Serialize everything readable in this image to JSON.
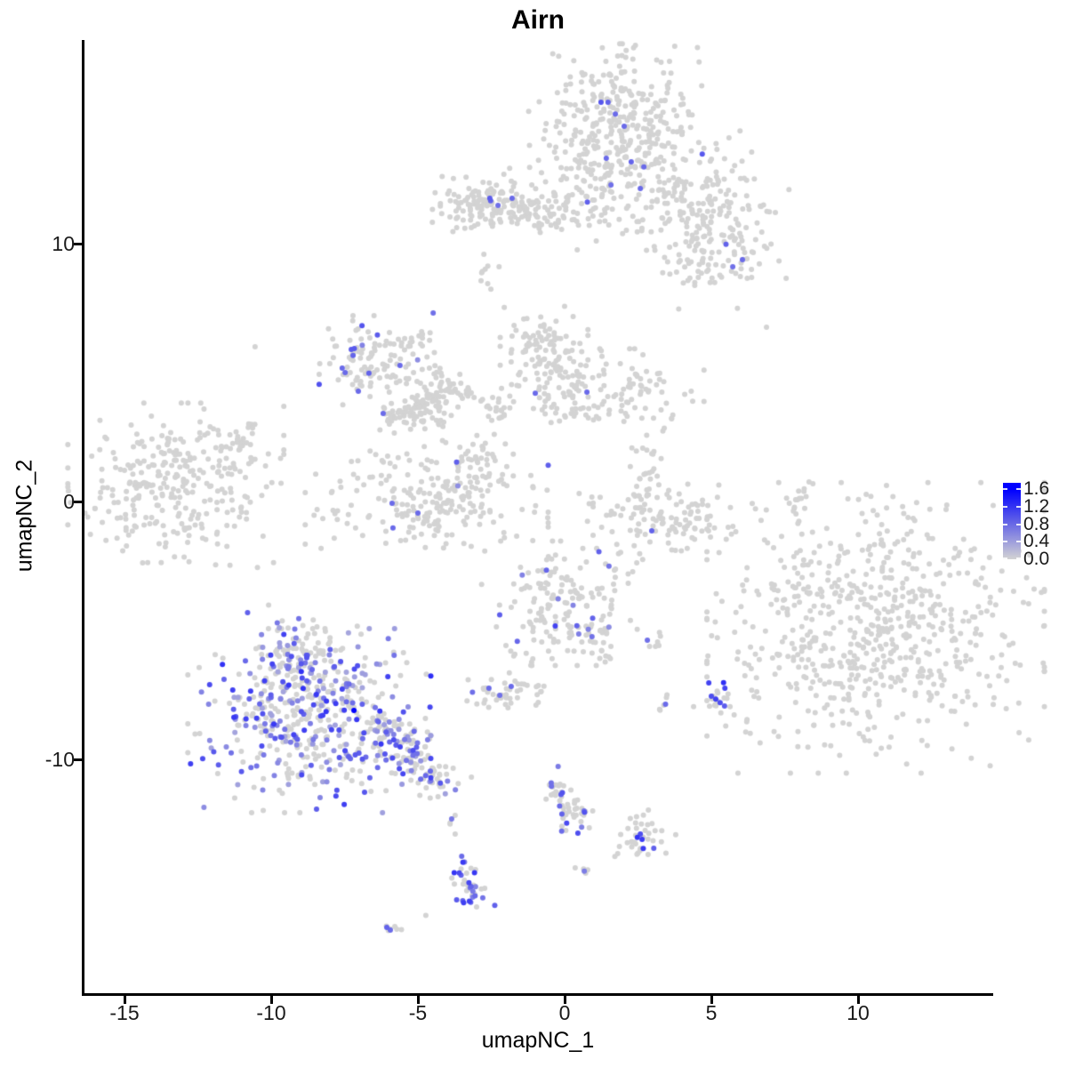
{
  "title": "Airn",
  "axes": {
    "x": {
      "label": "umapNC_1",
      "ticks": [
        "-15",
        "-10",
        "-5",
        "0",
        "5",
        "10"
      ],
      "tick_values": [
        -15,
        -10,
        -5,
        0,
        5,
        10
      ]
    },
    "y": {
      "label": "umapNC_2",
      "ticks": [
        "10",
        "0",
        "-10"
      ],
      "tick_values": [
        10,
        0,
        -10
      ]
    }
  },
  "legend": {
    "tick_labels": [
      "1.6",
      "1.2",
      "0.8",
      "0.4",
      "0.0"
    ],
    "tick_values": [
      1.6,
      1.2,
      0.8,
      0.4,
      0.0
    ],
    "low_color": "#d3d3d3",
    "high_color": "#0000ff",
    "max_value": 1.75
  },
  "chart_data": {
    "type": "scatter",
    "title": "Airn",
    "xlabel": "umapNC_1",
    "ylabel": "umapNC_2",
    "xlim": [
      -16.4,
      14.5
    ],
    "ylim": [
      -19.0,
      17.9
    ],
    "x_ticks": [
      -15,
      -10,
      -5,
      0,
      5,
      10
    ],
    "y_ticks": [
      10,
      0,
      -10
    ],
    "grid": false,
    "legend_position": "right",
    "colorbar": {
      "label_values": [
        1.6,
        1.2,
        0.8,
        0.4,
        0.0
      ],
      "low": "#d3d3d3",
      "high": "#0000ff",
      "value_range": [
        0,
        1.75
      ]
    },
    "point_radius_px": 3,
    "clusters_format": [
      "n",
      "cx",
      "cy",
      "sx",
      "sy",
      "expr_frac",
      "v_lo",
      "v_hi"
    ],
    "clusters": [
      [
        380,
        1.88,
        14.3,
        1.35,
        1.5,
        0.006,
        0.5,
        1.0
      ],
      [
        90,
        2.3,
        11.7,
        1.9,
        0.85,
        0.012,
        0.5,
        0.9
      ],
      [
        110,
        5.0,
        11.5,
        1.15,
        1.25,
        0.005,
        0.5,
        0.8
      ],
      [
        95,
        5.25,
        9.65,
        1.0,
        0.95,
        0.01,
        0.5,
        1.0
      ],
      [
        130,
        -2.35,
        11.6,
        1.05,
        0.5,
        0.01,
        0.5,
        1.0
      ],
      [
        55,
        -0.7,
        11.1,
        0.85,
        0.35,
        0,
        0,
        0
      ],
      [
        10,
        -3.9,
        11.0,
        0.45,
        0.35,
        0,
        0,
        0
      ],
      [
        9,
        -2.65,
        8.7,
        0.2,
        0.4,
        0,
        0,
        0
      ],
      [
        68,
        -7.1,
        5.45,
        0.55,
        0.8,
        0.03,
        0.5,
        1.0
      ],
      [
        55,
        -5.7,
        4.85,
        1.15,
        0.6,
        0.02,
        0.5,
        0.9
      ],
      [
        70,
        -4.9,
        3.6,
        0.55,
        0.5,
        0,
        0,
        0
      ],
      [
        110,
        -0.7,
        5.6,
        0.65,
        0.9,
        0,
        0,
        0
      ],
      [
        140,
        1.3,
        4.2,
        1.5,
        0.75,
        0,
        0,
        0
      ],
      [
        300,
        -13.25,
        0.6,
        1.6,
        1.4,
        0,
        0,
        0
      ],
      [
        185,
        -4.7,
        -0.2,
        1.8,
        0.75,
        0.005,
        0.5,
        0.9
      ],
      [
        55,
        -2.9,
        1.3,
        0.5,
        0.65,
        0,
        0,
        0
      ],
      [
        25,
        -5.6,
        1.7,
        1.0,
        0.6,
        0,
        0,
        0
      ],
      [
        115,
        3.6,
        -0.65,
        1.35,
        0.6,
        0,
        0,
        0
      ],
      [
        30,
        2.65,
        0.7,
        0.35,
        0.8,
        0,
        0,
        0
      ],
      [
        175,
        -0.1,
        -3.95,
        1.2,
        1.05,
        0.1,
        0.5,
        1.1
      ],
      [
        6,
        2.85,
        -5.4,
        0.25,
        0.2,
        0,
        0,
        0
      ],
      [
        680,
        10.6,
        -4.9,
        2.5,
        2.45,
        0,
        0,
        0
      ],
      [
        430,
        -8.7,
        -8.5,
        1.8,
        1.55,
        0.45,
        0.35,
        1.25
      ],
      [
        130,
        -8.85,
        -6.2,
        0.85,
        0.95,
        0.4,
        0.35,
        1.15
      ],
      [
        40,
        -2.2,
        -7.3,
        0.65,
        0.4,
        0.02,
        0.5,
        0.9
      ],
      [
        6,
        -1.0,
        -7.45,
        0.2,
        0.3,
        0,
        0,
        0
      ],
      [
        5,
        3.4,
        -7.85,
        0.2,
        0.25,
        0,
        0,
        0
      ],
      [
        18,
        5.2,
        -7.7,
        0.35,
        0.35,
        0.2,
        0.7,
        1.3
      ],
      [
        9,
        0.5,
        -12.1,
        0.35,
        0.2,
        0.12,
        0.6,
        0.8
      ],
      [
        4,
        0.65,
        -14.3,
        0.15,
        0.15,
        0,
        0,
        0
      ],
      [
        40,
        2.45,
        -13.0,
        0.7,
        0.45,
        0.1,
        0.7,
        1.2
      ],
      [
        6,
        -6.0,
        -16.5,
        0.2,
        0.15,
        0,
        0,
        0
      ],
      [
        3,
        -3.85,
        -12.6,
        0.12,
        0.3,
        0,
        0,
        0
      ]
    ],
    "filaments_format": [
      "n",
      "x1",
      "y1",
      "x2",
      "y2",
      "jitter",
      "expr_frac",
      "v_lo",
      "v_hi"
    ],
    "filaments": [
      [
        22,
        -11.9,
        1.9,
        -10.4,
        3.0,
        0.16,
        0,
        0,
        0
      ],
      [
        45,
        -6.3,
        2.95,
        -3.5,
        4.55,
        0.18,
        0.02,
        0.6,
        0.9
      ],
      [
        35,
        -4.2,
        4.8,
        -1.9,
        3.3,
        0.15,
        0,
        0,
        0
      ],
      [
        18,
        -5.9,
        5.9,
        -4.6,
        6.4,
        0.2,
        0,
        0,
        0
      ],
      [
        12,
        7.8,
        -0.5,
        8.2,
        0.7,
        0.1,
        0,
        0,
        0
      ],
      [
        22,
        0.75,
        -4.7,
        1.5,
        -6.1,
        0.3,
        0.18,
        0.6,
        1.0
      ],
      [
        130,
        -6.6,
        -8.6,
        -3.9,
        -11.0,
        0.42,
        0.42,
        0.35,
        1.1
      ],
      [
        45,
        -0.35,
        -10.7,
        0.2,
        -12.6,
        0.27,
        0.28,
        0.6,
        1.1
      ],
      [
        42,
        -3.55,
        -14.0,
        -2.95,
        -15.75,
        0.26,
        0.5,
        0.6,
        1.2
      ]
    ],
    "singles_format": [
      "x",
      "y",
      "value"
    ],
    "singles": [
      [
        6.88,
        6.76,
        0
      ],
      [
        -10.55,
        6.0,
        0
      ],
      [
        -4.73,
        -16.05,
        0
      ],
      [
        8.33,
        0.76,
        0
      ],
      [
        7.95,
        -0.85,
        0
      ],
      [
        -3.73,
        -12.9,
        0
      ],
      [
        -7.18,
        -8.1,
        1.6
      ],
      [
        -4.48,
        7.31,
        0.75
      ],
      [
        2.58,
        12.14,
        0.8
      ],
      [
        2.97,
        -1.14,
        0.85
      ],
      [
        -5.88,
        -0.07,
        0.8
      ],
      [
        -5.0,
        -0.45,
        0.8
      ],
      [
        -5.85,
        -1.03,
        0.8
      ],
      [
        -1.0,
        4.2,
        0.8
      ],
      [
        0.76,
        4.24,
        0.8
      ],
      [
        -2.55,
        11.76,
        0.9
      ],
      [
        -2.52,
        11.66,
        0.85
      ],
      [
        -1.79,
        11.76,
        0.8
      ],
      [
        -2.27,
        11.48,
        0.75
      ],
      [
        5.5,
        9.97,
        0.85
      ],
      [
        6.06,
        9.38,
        0.8
      ],
      [
        5.73,
        9.1,
        0.75
      ],
      [
        1.24,
        15.48,
        0.95
      ],
      [
        1.48,
        15.48,
        0.85
      ],
      [
        1.73,
        15.03,
        0.8
      ],
      [
        2.03,
        14.55,
        0.8
      ],
      [
        1.42,
        13.31,
        0.8
      ],
      [
        2.27,
        13.17,
        0.85
      ],
      [
        2.7,
        12.97,
        0.8
      ],
      [
        1.58,
        12.28,
        0.75
      ],
      [
        -7.27,
        5.9,
        0.9
      ],
      [
        -7.21,
        5.66,
        0.85
      ],
      [
        -7.58,
        5.17,
        0.8
      ],
      [
        -7.48,
        5.0,
        0.8
      ],
      [
        -6.67,
        4.97,
        0.85
      ],
      [
        -5.61,
        5.28,
        0.8
      ],
      [
        -7.03,
        4.28,
        0.8
      ],
      [
        5.0,
        -7.55,
        1.0
      ],
      [
        5.15,
        -7.66,
        1.1
      ],
      [
        5.3,
        -7.8,
        1.0
      ],
      [
        5.45,
        -7.93,
        0.9
      ],
      [
        2.48,
        -13.03,
        1.2
      ],
      [
        2.64,
        -13.1,
        1.15
      ],
      [
        -6.06,
        -16.52,
        0.85
      ],
      [
        -5.94,
        -16.62,
        0.8
      ],
      [
        0.67,
        -14.34,
        0.65
      ],
      [
        -3.85,
        -12.31,
        0.7
      ],
      [
        -2.58,
        -7.24,
        0.8
      ],
      [
        -2.21,
        -7.52,
        0.75
      ],
      [
        -1.82,
        -7.17,
        0.8
      ],
      [
        3.44,
        -7.86,
        0.8
      ],
      [
        2.82,
        -5.38,
        0.75
      ]
    ],
    "colors": {
      "background": "#ffffff",
      "axis": "#000000",
      "tick_text": "#1a1a1a",
      "point_low": "#d3d3d3",
      "point_high": "#0000ff"
    }
  }
}
